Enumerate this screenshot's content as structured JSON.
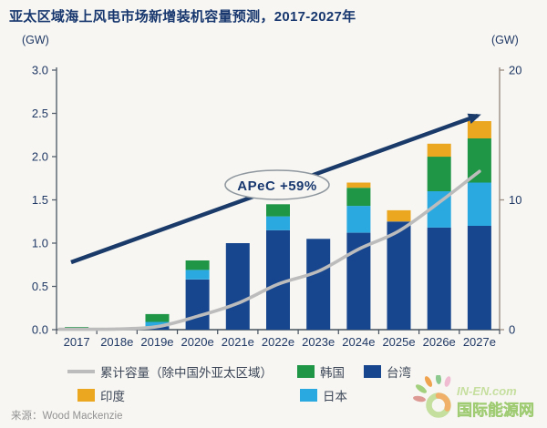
{
  "title": "亚太区域海上风电市场新增装机容量预测，2017-2027年",
  "axis_units": {
    "left": "(GW)",
    "right": "(GW)"
  },
  "annotation": {
    "text": "APeC +59%"
  },
  "source": "来源：Wood Mackenzie",
  "logo": {
    "name": "IN-EN.com",
    "cn": "国际能源网"
  },
  "colors": {
    "taiwan": "#17468e",
    "japan": "#2aa9e0",
    "korea": "#1e9645",
    "india": "#eaa71f",
    "cumulative_line": "#bcbcbc",
    "trend_arrow": "#1a3a69",
    "axis_text": "#1f3864",
    "title_text": "#17376e"
  },
  "legend": [
    {
      "label": "累计容量（除中国外亚太区域）",
      "swatch": "line",
      "color": "#bcbcbc"
    },
    {
      "label": "韩国",
      "swatch": "box",
      "color": "#1e9645"
    },
    {
      "label": "台湾",
      "swatch": "box",
      "color": "#17468e"
    },
    {
      "label": "印度",
      "swatch": "box",
      "color": "#eaa71f"
    },
    {
      "label": "日本",
      "swatch": "box",
      "color": "#2aa9e0"
    }
  ],
  "chart_data": {
    "type": "bar",
    "title": "亚太区域海上风电市场新增装机容量预测，2017-2027年",
    "stacked": true,
    "grid": false,
    "categories": [
      "2017",
      "2018e",
      "2019e",
      "2020e",
      "2021e",
      "2022e",
      "2023e",
      "2024e",
      "2025e",
      "2026e",
      "2027e"
    ],
    "series": [
      {
        "name": "台湾",
        "key": "taiwan",
        "type": "bar",
        "axis": "left",
        "color": "#17468e",
        "values": [
          0,
          0.02,
          0.04,
          0.58,
          1.0,
          1.15,
          1.05,
          1.12,
          1.25,
          1.18,
          1.2
        ]
      },
      {
        "name": "日本",
        "key": "japan",
        "type": "bar",
        "axis": "left",
        "color": "#2aa9e0",
        "values": [
          0,
          0,
          0.05,
          0.11,
          0,
          0.16,
          0,
          0.31,
          0,
          0.42,
          0.5
        ]
      },
      {
        "name": "韩国",
        "key": "korea",
        "type": "bar",
        "axis": "left",
        "color": "#1e9645",
        "values": [
          0.03,
          0,
          0.09,
          0.11,
          0,
          0.14,
          0,
          0.21,
          0,
          0.4,
          0.51
        ]
      },
      {
        "name": "印度",
        "key": "india",
        "type": "bar",
        "axis": "left",
        "color": "#eaa71f",
        "values": [
          0,
          0,
          0,
          0,
          0,
          0,
          0,
          0.06,
          0.13,
          0.15,
          0.2
        ]
      },
      {
        "name": "累计容量（除中国外亚太区域）",
        "key": "cumulative",
        "type": "line",
        "axis": "right",
        "color": "#bcbcbc",
        "values": [
          0.03,
          0.05,
          0.23,
          1.03,
          2.03,
          3.5,
          4.5,
          6.2,
          7.6,
          9.8,
          12.2
        ]
      }
    ],
    "left_axis": {
      "unit": "(GW)",
      "min": 0,
      "max": 3.0,
      "ticks": [
        "0.0",
        "0.5",
        "1.0",
        "1.5",
        "2.0",
        "2.5",
        "3.0"
      ]
    },
    "right_axis": {
      "unit": "(GW)",
      "min": 0,
      "max": 20,
      "ticks": [
        "0",
        "10",
        "20"
      ]
    }
  }
}
